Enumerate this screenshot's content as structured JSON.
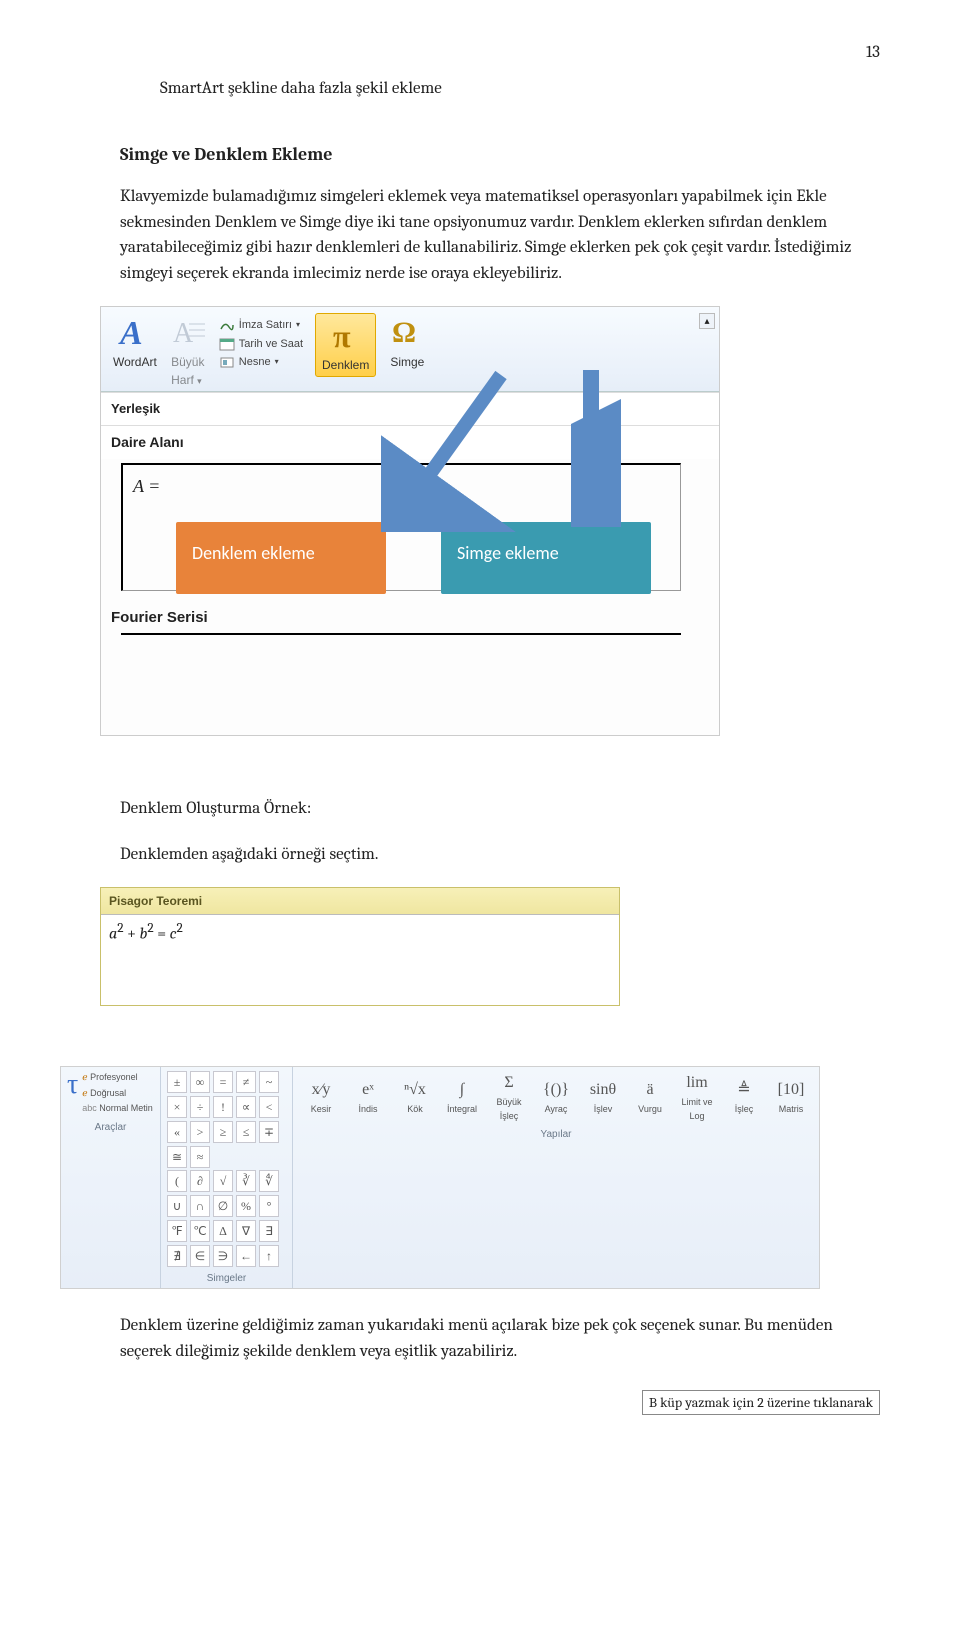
{
  "page_number": "13",
  "indent_title": "SmartArt şekline daha fazla şekil ekleme",
  "section_heading": "Simge ve Denklem Ekleme",
  "intro_para": "Klavyemizde bulamadığımız simgeleri eklemek veya matematiksel operasyonları yapabilmek için Ekle sekmesinden Denklem ve Simge diye iki tane opsiyonumuz vardır. Denklem eklerken sıfırdan denklem yaratabileceğimiz gibi hazır denklemleri de kullanabiliriz. Simge eklerken pek çok çeşit vardır. İstediğimiz simgeyi seçerek ekranda imlecimiz nerde ise oraya ekleyebiliriz.",
  "ribbon": {
    "wordart_label": "WordArt",
    "buyukharf_label_l1": "Büyük",
    "buyukharf_label_l2": "Harf",
    "mini_imza": "İmza Satırı",
    "mini_tarih": "Tarih ve Saat",
    "mini_nesne": "Nesne",
    "denklem_label": "Denklem",
    "simge_label": "Simge"
  },
  "yerlesik_label": "Yerleşik",
  "daire_alani_label": "Daire Alanı",
  "formula_a": "A =",
  "fourier_label": "Fourier Serisi",
  "callout_denklem": "Denklem ekleme",
  "callout_simge": "Simge ekleme",
  "ex_heading": "Denklem Oluşturma Örnek:",
  "ex_line": "Denklemden aşağıdaki örneği seçtim.",
  "pisagor_title": "Pisagor Teoremi",
  "pisagor_formula": "a² + b² = c²",
  "shot3": {
    "left_items": [
      "Profesyonel",
      "Doğrusal",
      "Normal Metin"
    ],
    "left_title": "Araçlar",
    "mid_syms_row1": [
      "±",
      "∞",
      "=",
      "≠",
      "~",
      "×",
      "÷",
      "!",
      "∝",
      "<",
      "«",
      ">",
      "≥",
      "≤",
      "∓",
      "≅",
      "≈"
    ],
    "mid_syms_row2": [
      "(",
      "∂",
      "√",
      "∛",
      "∜",
      "∪",
      "∩",
      "∅",
      "%",
      "°",
      "℉",
      "℃",
      "∆",
      "∇",
      "∃",
      "∄",
      "∈",
      "∋",
      "←",
      "↑"
    ],
    "mid_title": "Simgeler",
    "yap_items": [
      "Kesir",
      "İndis",
      "Kök",
      "İntegral",
      "Büyük İşleç",
      "Ayraç",
      "İşlev",
      "Vurgu",
      "Limit ve Log",
      "İşleç",
      "Matris"
    ],
    "yap_icons": [
      "x⁄y",
      "eˣ",
      "ⁿ√x",
      "∫",
      "Σ",
      "{()}",
      "sinθ",
      "ä",
      "lim",
      "≜",
      "[10]"
    ],
    "yap_title": "Yapılar"
  },
  "concl_1": "Denklem üzerine geldiğimiz zaman yukarıdaki menü açılarak bize pek çok seçenek sunar. Bu menüden seçerek dileğimiz şekilde denklem veya eşitlik yazabiliriz.",
  "foot_box": "B küp yazmak için 2 üzerine tıklanarak",
  "colors": {
    "arrow": "#5b8bc5",
    "orange": "#e8833a",
    "teal": "#3a9bb0",
    "pi_gold": "#f0c040"
  }
}
